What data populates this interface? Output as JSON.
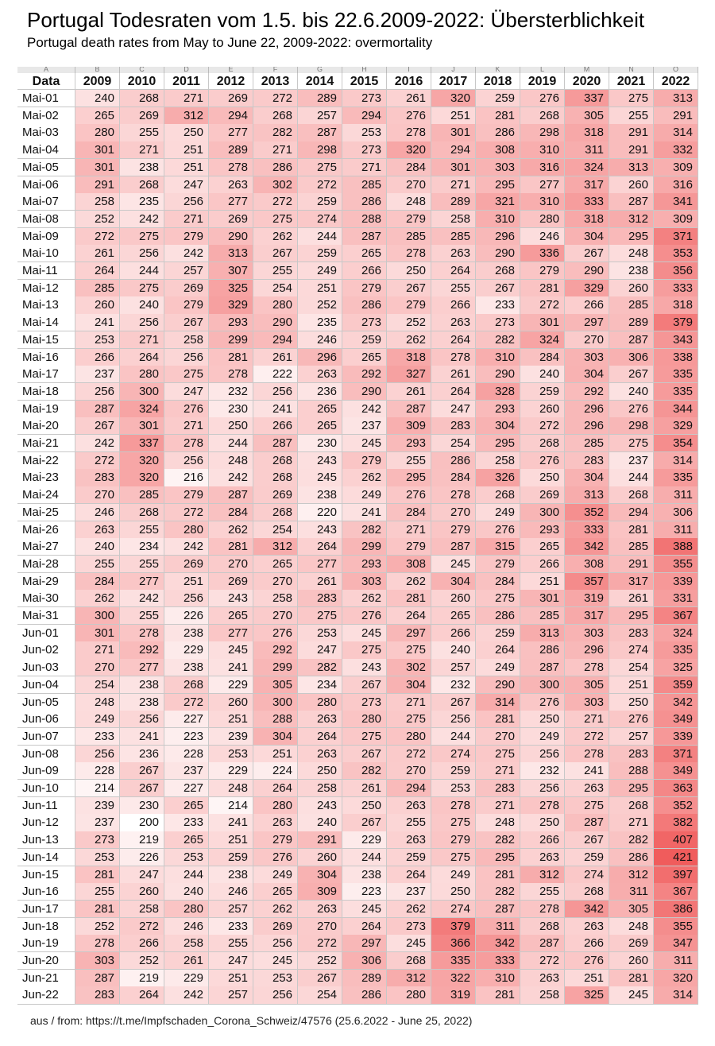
{
  "header": {
    "title": "Portugal Todesraten vom 1.5. bis 22.6.2009-2022: Übersterblichkeit",
    "subtitle": "Portugal death rates from May to June 22, 2009-2022: overmortality"
  },
  "table": {
    "column_letters": [
      "A",
      "B",
      "C",
      "D",
      "E",
      "F",
      "G",
      "H",
      "I",
      "J",
      "K",
      "L",
      "M",
      "N",
      "O"
    ],
    "header": [
      "Data",
      "2009",
      "2010",
      "2011",
      "2012",
      "2013",
      "2014",
      "2015",
      "2016",
      "2017",
      "2018",
      "2019",
      "2020",
      "2021",
      "2022"
    ],
    "rows": [
      [
        "Mai-01",
        240,
        268,
        271,
        269,
        272,
        289,
        273,
        261,
        320,
        259,
        276,
        337,
        275,
        313
      ],
      [
        "Mai-02",
        265,
        269,
        312,
        294,
        268,
        257,
        294,
        276,
        251,
        281,
        268,
        305,
        255,
        291
      ],
      [
        "Mai-03",
        280,
        255,
        250,
        277,
        282,
        287,
        253,
        278,
        301,
        286,
        298,
        318,
        291,
        314
      ],
      [
        "Mai-04",
        301,
        271,
        251,
        289,
        271,
        298,
        273,
        320,
        294,
        308,
        310,
        311,
        291,
        332
      ],
      [
        "Mai-05",
        301,
        238,
        251,
        278,
        286,
        275,
        271,
        284,
        301,
        303,
        316,
        324,
        313,
        309
      ],
      [
        "Mai-06",
        291,
        268,
        247,
        263,
        302,
        272,
        285,
        270,
        271,
        295,
        277,
        317,
        260,
        316
      ],
      [
        "Mai-07",
        258,
        235,
        256,
        277,
        272,
        259,
        286,
        248,
        289,
        321,
        310,
        333,
        287,
        341
      ],
      [
        "Mai-08",
        252,
        242,
        271,
        269,
        275,
        274,
        288,
        279,
        258,
        310,
        280,
        318,
        312,
        309
      ],
      [
        "Mai-09",
        272,
        275,
        279,
        290,
        262,
        244,
        287,
        285,
        285,
        296,
        246,
        304,
        295,
        371
      ],
      [
        "Mai-10",
        261,
        256,
        242,
        313,
        267,
        259,
        265,
        278,
        263,
        290,
        336,
        267,
        248,
        353
      ],
      [
        "Mai-11",
        264,
        244,
        257,
        307,
        255,
        249,
        266,
        250,
        264,
        268,
        279,
        290,
        238,
        356
      ],
      [
        "Mai-12",
        285,
        275,
        269,
        325,
        254,
        251,
        279,
        267,
        255,
        267,
        281,
        329,
        260,
        333
      ],
      [
        "Mai-13",
        260,
        240,
        279,
        329,
        280,
        252,
        286,
        279,
        266,
        233,
        272,
        266,
        285,
        318
      ],
      [
        "Mai-14",
        241,
        256,
        267,
        293,
        290,
        235,
        273,
        252,
        263,
        273,
        301,
        297,
        289,
        379
      ],
      [
        "Mai-15",
        253,
        271,
        258,
        299,
        294,
        246,
        259,
        262,
        264,
        282,
        324,
        270,
        287,
        343
      ],
      [
        "Mai-16",
        266,
        264,
        256,
        281,
        261,
        296,
        265,
        318,
        278,
        310,
        284,
        303,
        306,
        338
      ],
      [
        "Mai-17",
        237,
        280,
        275,
        278,
        222,
        263,
        292,
        327,
        261,
        290,
        240,
        304,
        267,
        335
      ],
      [
        "Mai-18",
        256,
        300,
        247,
        232,
        256,
        236,
        290,
        261,
        264,
        328,
        259,
        292,
        240,
        335
      ],
      [
        "Mai-19",
        287,
        324,
        276,
        230,
        241,
        265,
        242,
        287,
        247,
        293,
        260,
        296,
        276,
        344
      ],
      [
        "Mai-20",
        267,
        301,
        271,
        250,
        266,
        265,
        237,
        309,
        283,
        304,
        272,
        296,
        298,
        329
      ],
      [
        "Mai-21",
        242,
        337,
        278,
        244,
        287,
        230,
        245,
        293,
        254,
        295,
        268,
        285,
        275,
        354
      ],
      [
        "Mai-22",
        272,
        320,
        256,
        248,
        268,
        243,
        279,
        255,
        286,
        258,
        276,
        283,
        237,
        314
      ],
      [
        "Mai-23",
        283,
        320,
        216,
        242,
        268,
        245,
        262,
        295,
        284,
        326,
        250,
        304,
        244,
        335
      ],
      [
        "Mai-24",
        270,
        285,
        279,
        287,
        269,
        238,
        249,
        276,
        278,
        268,
        269,
        313,
        268,
        311
      ],
      [
        "Mai-25",
        246,
        268,
        272,
        284,
        268,
        220,
        241,
        284,
        270,
        249,
        300,
        352,
        294,
        306
      ],
      [
        "Mai-26",
        263,
        255,
        280,
        262,
        254,
        243,
        282,
        271,
        279,
        276,
        293,
        333,
        281,
        311
      ],
      [
        "Mai-27",
        240,
        234,
        242,
        281,
        312,
        264,
        299,
        279,
        287,
        315,
        265,
        342,
        285,
        388
      ],
      [
        "Mai-28",
        255,
        255,
        269,
        270,
        265,
        277,
        293,
        308,
        245,
        279,
        266,
        308,
        291,
        355
      ],
      [
        "Mai-29",
        284,
        277,
        251,
        269,
        270,
        261,
        303,
        262,
        304,
        284,
        251,
        357,
        317,
        339
      ],
      [
        "Mai-30",
        262,
        242,
        256,
        243,
        258,
        283,
        262,
        281,
        260,
        275,
        301,
        319,
        261,
        331
      ],
      [
        "Mai-31",
        300,
        255,
        226,
        265,
        270,
        275,
        276,
        264,
        265,
        286,
        285,
        317,
        295,
        367
      ],
      [
        "Jun-01",
        301,
        278,
        238,
        277,
        276,
        253,
        245,
        297,
        266,
        259,
        313,
        303,
        283,
        324
      ],
      [
        "Jun-02",
        271,
        292,
        229,
        245,
        292,
        247,
        275,
        275,
        240,
        264,
        286,
        296,
        274,
        335
      ],
      [
        "Jun-03",
        270,
        277,
        238,
        241,
        299,
        282,
        243,
        302,
        257,
        249,
        287,
        278,
        254,
        325
      ],
      [
        "Jun-04",
        254,
        238,
        268,
        229,
        305,
        234,
        267,
        304,
        232,
        290,
        300,
        305,
        251,
        359
      ],
      [
        "Jun-05",
        248,
        238,
        272,
        260,
        300,
        280,
        273,
        271,
        267,
        314,
        276,
        303,
        250,
        342
      ],
      [
        "Jun-06",
        249,
        256,
        227,
        251,
        288,
        263,
        280,
        275,
        256,
        281,
        250,
        271,
        276,
        349
      ],
      [
        "Jun-07",
        233,
        241,
        223,
        239,
        304,
        264,
        275,
        280,
        244,
        270,
        249,
        272,
        257,
        339
      ],
      [
        "Jun-08",
        256,
        236,
        228,
        253,
        251,
        263,
        267,
        272,
        274,
        275,
        256,
        278,
        283,
        371
      ],
      [
        "Jun-09",
        228,
        267,
        237,
        229,
        224,
        250,
        282,
        270,
        259,
        271,
        232,
        241,
        288,
        349
      ],
      [
        "Jun-10",
        214,
        267,
        227,
        248,
        264,
        258,
        261,
        294,
        253,
        283,
        256,
        263,
        295,
        363
      ],
      [
        "Jun-11",
        239,
        230,
        265,
        214,
        280,
        243,
        250,
        263,
        278,
        271,
        278,
        275,
        268,
        352
      ],
      [
        "Jun-12",
        237,
        200,
        233,
        241,
        263,
        240,
        267,
        255,
        275,
        248,
        250,
        287,
        271,
        382
      ],
      [
        "Jun-13",
        273,
        219,
        265,
        251,
        279,
        291,
        229,
        263,
        279,
        282,
        266,
        267,
        282,
        407
      ],
      [
        "Jun-14",
        253,
        226,
        253,
        259,
        276,
        260,
        244,
        259,
        275,
        295,
        263,
        259,
        286,
        421
      ],
      [
        "Jun-15",
        281,
        247,
        244,
        238,
        249,
        304,
        238,
        264,
        249,
        281,
        312,
        274,
        312,
        397
      ],
      [
        "Jun-16",
        255,
        260,
        240,
        246,
        265,
        309,
        223,
        237,
        250,
        282,
        255,
        268,
        311,
        367
      ],
      [
        "Jun-17",
        281,
        258,
        280,
        257,
        262,
        263,
        245,
        262,
        274,
        287,
        278,
        342,
        305,
        386
      ],
      [
        "Jun-18",
        252,
        272,
        246,
        233,
        269,
        270,
        264,
        273,
        379,
        311,
        268,
        263,
        248,
        355
      ],
      [
        "Jun-19",
        278,
        266,
        258,
        255,
        256,
        272,
        297,
        245,
        366,
        342,
        287,
        266,
        269,
        347
      ],
      [
        "Jun-20",
        303,
        252,
        261,
        247,
        245,
        252,
        306,
        268,
        335,
        333,
        272,
        276,
        260,
        311
      ],
      [
        "Jun-21",
        287,
        219,
        229,
        251,
        253,
        267,
        289,
        312,
        322,
        310,
        263,
        251,
        281,
        320
      ],
      [
        "Jun-22",
        283,
        264,
        242,
        257,
        256,
        254,
        286,
        280,
        319,
        281,
        258,
        325,
        245,
        314
      ]
    ]
  },
  "footer": {
    "source": "aus / from: https://t.me/Impfschaden_Corona_Schweiz/47576 (25.6.2022 - June 25, 2022)"
  }
}
